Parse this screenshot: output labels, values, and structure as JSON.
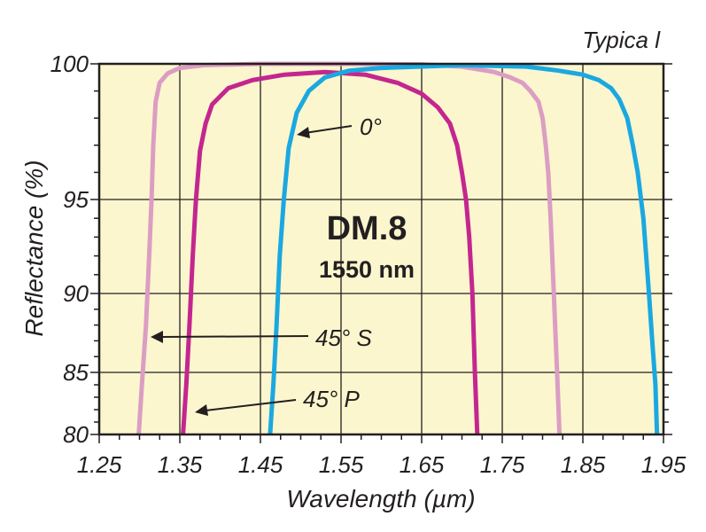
{
  "chart_data": {
    "type": "line",
    "title": "DM.8",
    "subtitle": "1550 nm",
    "note": "Typica l",
    "xlabel": "Wavelength (µm)",
    "ylabel": "Reflectance (%)",
    "xlim": [
      1.25,
      1.95
    ],
    "ylim": [
      80,
      100
    ],
    "x_ticks": [
      "1.25",
      "1.35",
      "1.45",
      "1.55",
      "1.65",
      "1.75",
      "1.85",
      "1.95"
    ],
    "y_ticks": [
      "80",
      "85",
      "90",
      "95",
      "100"
    ],
    "y_scale": "reflectance-compressed",
    "colors": {
      "background": "#fbf6ce",
      "grid": "#231f20",
      "s45": "#dc9dc3",
      "p45": "#c4268f",
      "deg0": "#1ba8e1"
    },
    "series": [
      {
        "name": "45° S",
        "x": [
          1.299,
          1.303,
          1.308,
          1.312,
          1.315,
          1.317,
          1.32,
          1.325,
          1.335,
          1.35,
          1.38,
          1.45,
          1.55,
          1.65,
          1.7,
          1.74,
          1.76,
          1.775,
          1.785,
          1.795,
          1.8,
          1.804,
          1.807,
          1.81,
          1.814,
          1.818,
          1.821
        ],
        "y": [
          80,
          84,
          88,
          92,
          95,
          97,
          98.6,
          99.3,
          99.65,
          99.85,
          99.95,
          100,
          100,
          99.98,
          99.9,
          99.7,
          99.5,
          99.3,
          99,
          98.6,
          98,
          97,
          96,
          94,
          90,
          85,
          80
        ]
      },
      {
        "name": "45° P",
        "x": [
          1.354,
          1.358,
          1.362,
          1.366,
          1.37,
          1.375,
          1.382,
          1.39,
          1.41,
          1.44,
          1.48,
          1.53,
          1.58,
          1.62,
          1.65,
          1.67,
          1.685,
          1.694,
          1.7,
          1.705,
          1.709,
          1.713,
          1.716,
          1.719
        ],
        "y": [
          80,
          84,
          88,
          92,
          95,
          96.8,
          97.8,
          98.5,
          99.1,
          99.4,
          99.6,
          99.7,
          99.6,
          99.3,
          98.9,
          98.4,
          97.8,
          97,
          96,
          95,
          93,
          90,
          85,
          80
        ]
      },
      {
        "name": "0°",
        "x": [
          1.462,
          1.466,
          1.47,
          1.474,
          1.479,
          1.485,
          1.495,
          1.51,
          1.53,
          1.56,
          1.6,
          1.7,
          1.78,
          1.82,
          1.85,
          1.87,
          1.885,
          1.895,
          1.905,
          1.912,
          1.918,
          1.925,
          1.932,
          1.936,
          1.94,
          1.942
        ],
        "y": [
          80,
          84,
          88,
          92,
          95,
          96.9,
          98.2,
          99,
          99.5,
          99.75,
          99.85,
          99.95,
          99.9,
          99.75,
          99.6,
          99.4,
          99.1,
          98.7,
          98,
          97,
          96,
          94,
          90,
          87,
          84,
          80
        ]
      }
    ],
    "annotations": [
      {
        "label": "0°",
        "target": "0°"
      },
      {
        "label": "45° S",
        "target": "45° S"
      },
      {
        "label": "45° P",
        "target": "45° P"
      }
    ]
  }
}
